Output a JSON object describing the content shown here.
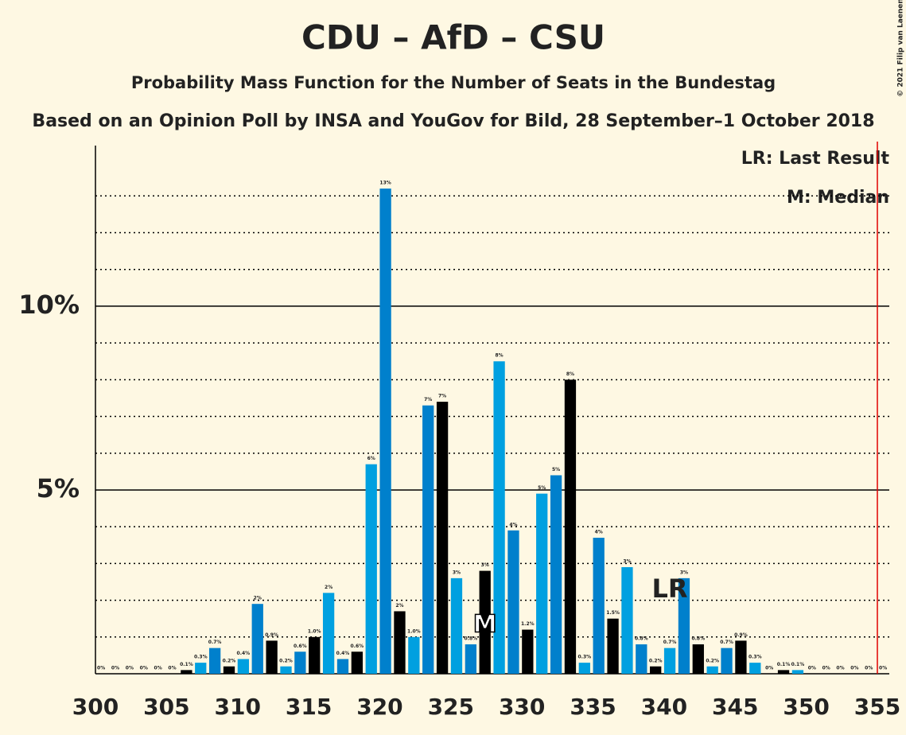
{
  "chart_data": {
    "type": "bar",
    "title": "CDU – AfD – CSU",
    "subtitle": "Probability Mass Function for the Number of Seats in the Bundestag",
    "subtitle2": "Based on an Opinion Poll by INSA and YouGov for Bild, 28 September–1 October 2018",
    "legend_lr": "LR: Last Result",
    "legend_m": "M: Median",
    "copyright": "© 2021 Filip van Laenen",
    "median": 327,
    "median_label": "M",
    "last_result": 340,
    "last_result_label": "LR",
    "majority_line": 355,
    "colors": [
      "#000000",
      "#00a0e0",
      "#0080cc"
    ],
    "x": [
      300,
      301,
      302,
      303,
      304,
      305,
      306,
      307,
      308,
      309,
      310,
      311,
      312,
      313,
      314,
      315,
      316,
      317,
      318,
      319,
      320,
      321,
      322,
      323,
      324,
      325,
      326,
      327,
      328,
      329,
      330,
      331,
      332,
      333,
      334,
      335,
      336,
      337,
      338,
      339,
      340,
      341,
      342,
      343,
      344,
      345,
      346,
      347,
      348,
      349,
      350,
      351,
      352,
      353,
      354,
      355
    ],
    "values": [
      0,
      0,
      0,
      0,
      0,
      0,
      0.1,
      0.3,
      0.7,
      0.2,
      0.4,
      1.9,
      0.9,
      0.2,
      0.6,
      1.0,
      2.2,
      0.4,
      0.6,
      5.7,
      13.2,
      1.7,
      1.0,
      7.3,
      7.4,
      2.6,
      0.8,
      2.8,
      8.5,
      3.9,
      1.2,
      4.9,
      5.4,
      8.0,
      0.3,
      3.7,
      1.5,
      2.9,
      0.8,
      0.2,
      0.7,
      2.6,
      0.8,
      0.2,
      0.7,
      0.9,
      0.3,
      0,
      0.1,
      0.1,
      0,
      0,
      0,
      0,
      0,
      0
    ],
    "value_labels": [
      "0%",
      "0%",
      "0%",
      "0%",
      "0%",
      "0%",
      "0.1%",
      "0.3%",
      "0.7%",
      "0.2%",
      "0.4%",
      "2%",
      "0.9%",
      "0.2%",
      "0.6%",
      "1.0%",
      "2%",
      "0.4%",
      "0.6%",
      "6%",
      "13%",
      "2%",
      "1.0%",
      "7%",
      "7%",
      "3%",
      "0.8%",
      "3%",
      "8%",
      "4%",
      "1.2%",
      "5%",
      "5%",
      "8%",
      "0.3%",
      "4%",
      "1.5%",
      "3%",
      "0.8%",
      "0.2%",
      "0.7%",
      "3%",
      "0.8%",
      "0.2%",
      "0.7%",
      "0.9%",
      "0.3%",
      "0%",
      "0.1%",
      "0.1%",
      "0%",
      "0%",
      "0%",
      "0%",
      "0%",
      "0%"
    ],
    "xlim": [
      300,
      355
    ],
    "xticks": [
      300,
      305,
      310,
      315,
      320,
      325,
      330,
      335,
      340,
      345,
      350,
      355
    ],
    "ylim": [
      0,
      14.37
    ],
    "yticks": [
      {
        "value": 5,
        "label": "5%"
      },
      {
        "value": 10,
        "label": "10%"
      }
    ],
    "minor_yticks": [
      1,
      2,
      3,
      4,
      6,
      7,
      8,
      9,
      11,
      12,
      13
    ],
    "grid": true
  }
}
